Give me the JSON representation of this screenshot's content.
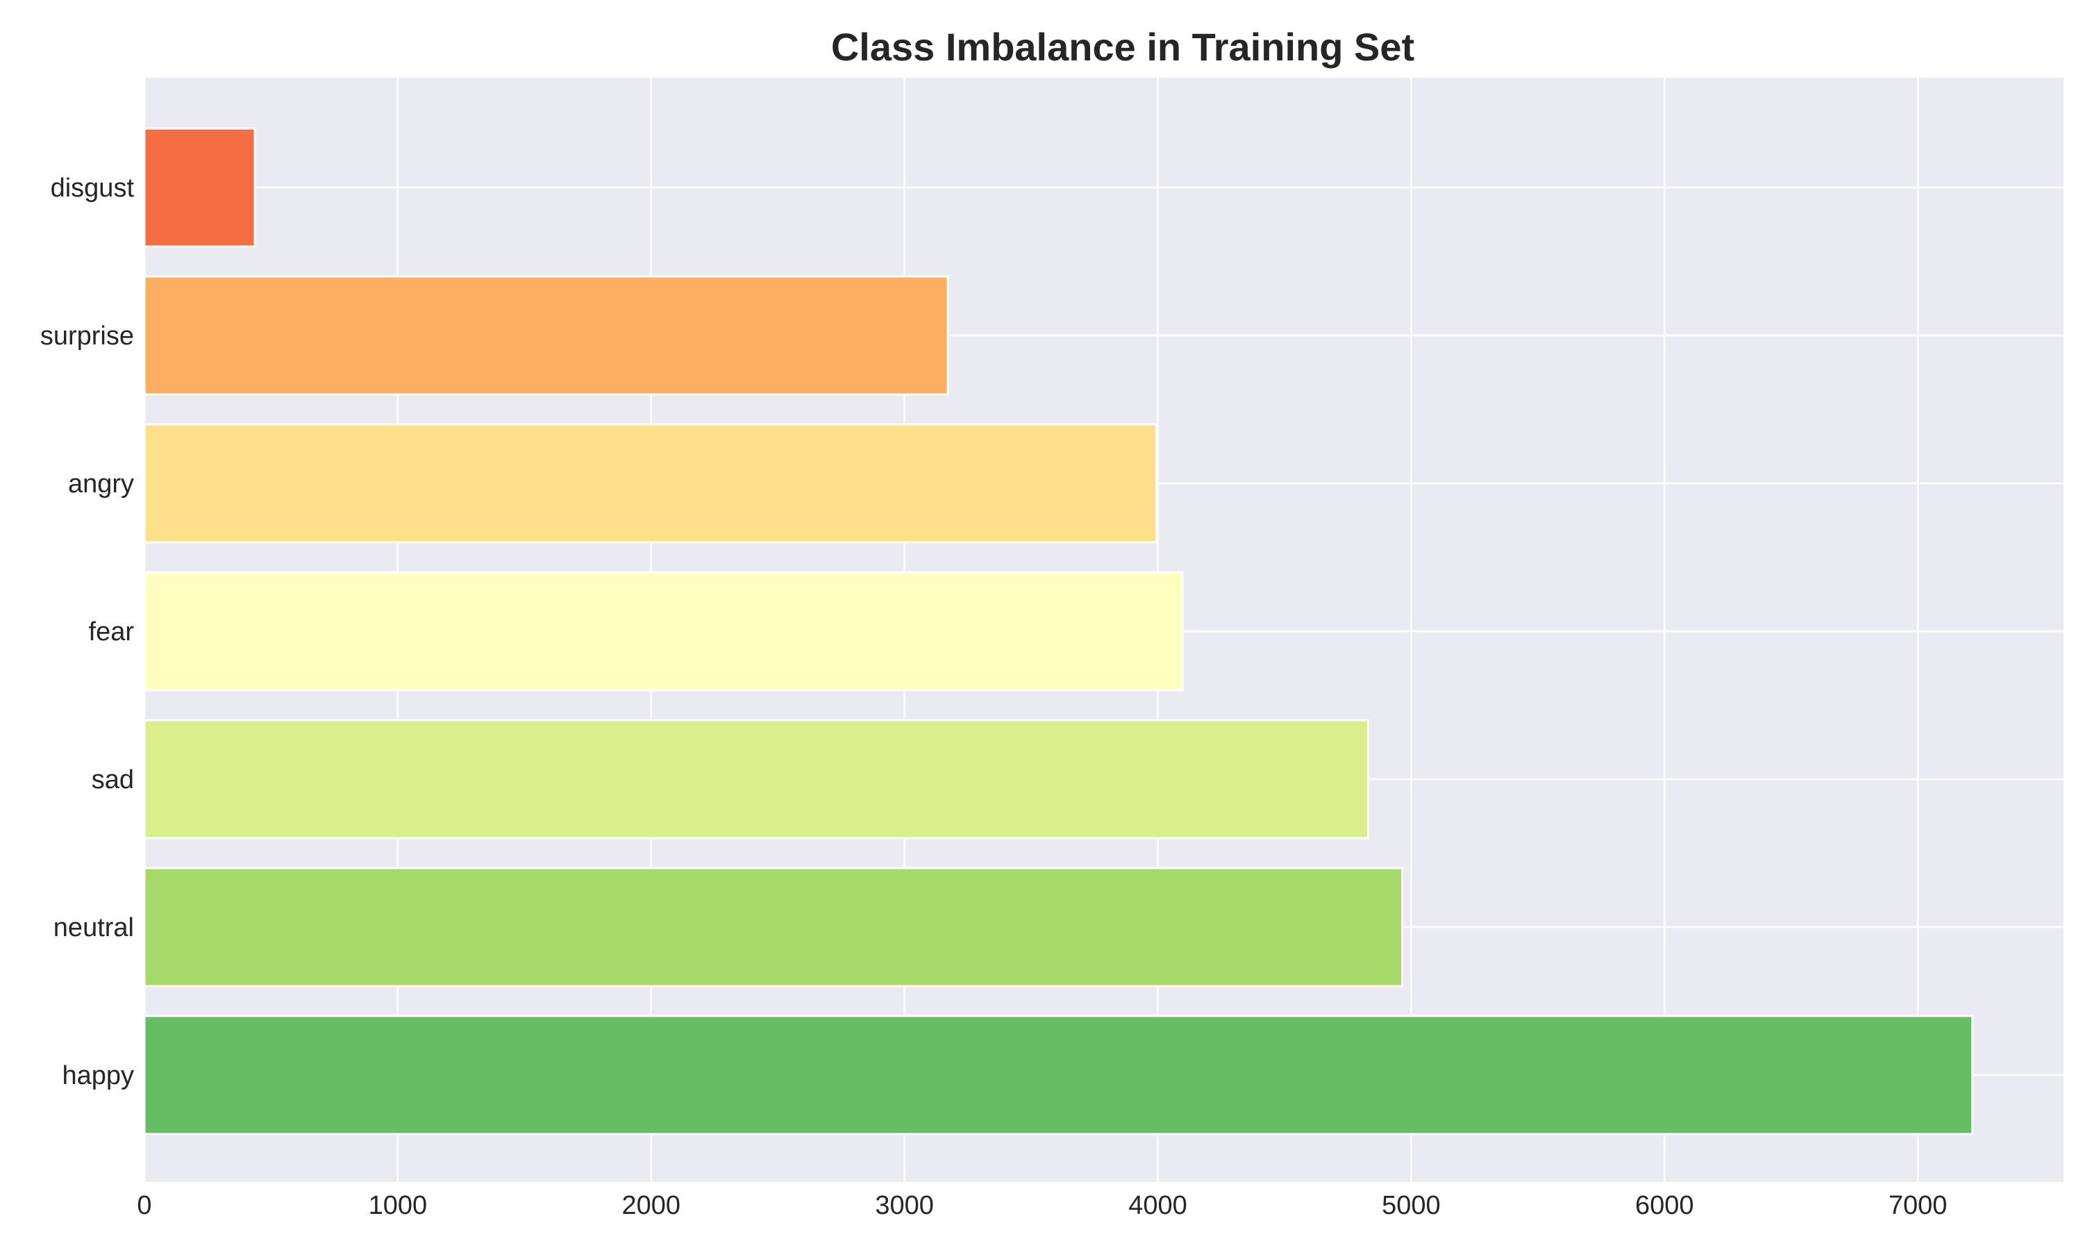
{
  "chart_data": {
    "type": "bar",
    "orientation": "horizontal",
    "title": "Class Imbalance in Training Set",
    "xlabel": "",
    "ylabel": "",
    "categories": [
      "happy",
      "neutral",
      "sad",
      "fear",
      "angry",
      "surprise",
      "disgust"
    ],
    "values": [
      7215,
      4965,
      4830,
      4097,
      3995,
      3171,
      436
    ],
    "colors": [
      "#66bd63",
      "#a6d96a",
      "#d9ef8b",
      "#ffffbf",
      "#fee08b",
      "#fdae61",
      "#f46d43"
    ],
    "xlim": [
      0,
      7575
    ],
    "xticks": [
      0,
      1000,
      2000,
      3000,
      4000,
      5000,
      6000,
      7000
    ],
    "grid": true,
    "legend": "none",
    "style": {
      "plot_background": "#eaeaf2",
      "grid_color": "#ffffff",
      "bar_edge_color": "#ffffff",
      "text_color": "#262626"
    }
  }
}
